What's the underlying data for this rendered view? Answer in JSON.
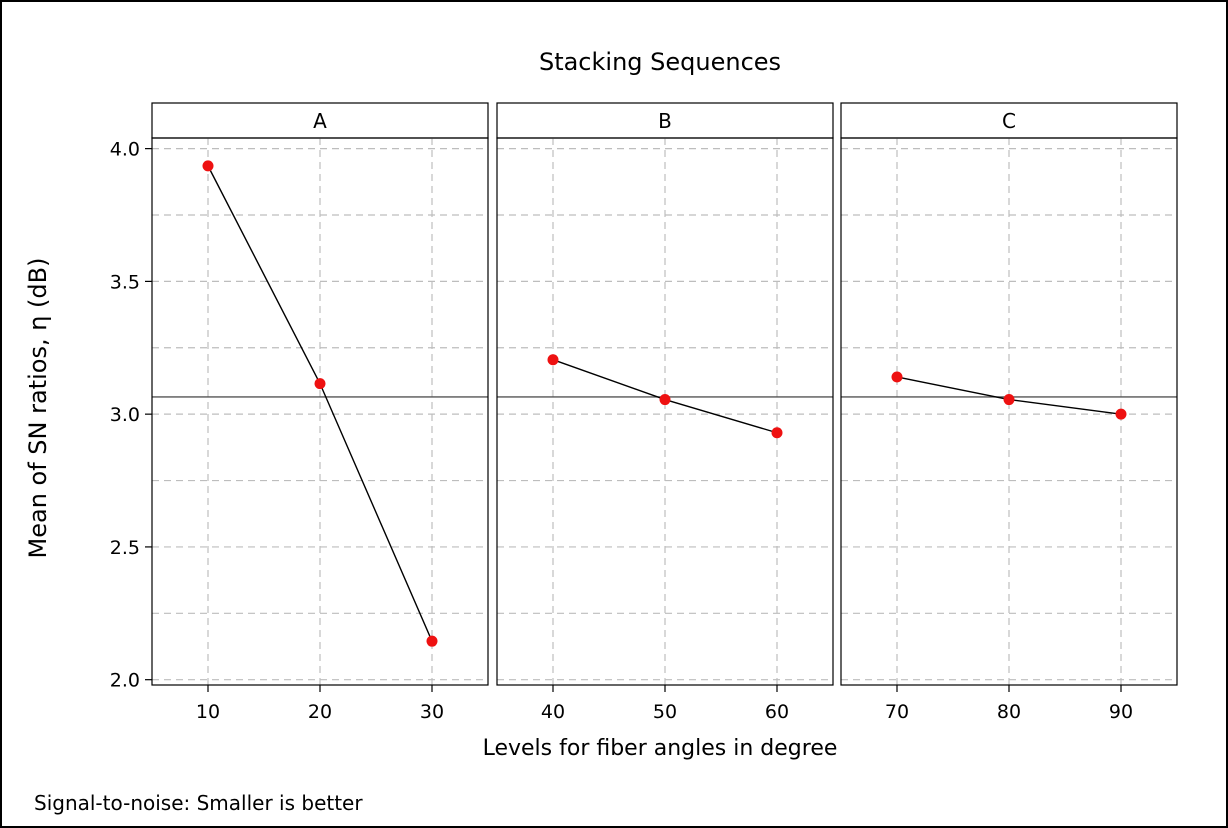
{
  "chart_data": {
    "type": "line",
    "title": "Stacking Sequences",
    "ylabel": "Mean of SN ratios, η (dB)",
    "xlabel": "Levels for fiber angles in degree",
    "footnote": "Signal-to-noise: Smaller is better",
    "ylim": [
      1.98,
      4.04
    ],
    "yticks": [
      2.0,
      2.5,
      3.0,
      3.5,
      4.0
    ],
    "ytick_labels": [
      "2.0",
      "2.5",
      "3.0",
      "3.5",
      "4.0"
    ],
    "grand_mean": 3.065,
    "grid": true,
    "point_color": "#ee1111",
    "line_color": "#000000",
    "panels": [
      {
        "name": "A",
        "x": [
          10,
          20,
          30
        ],
        "x_labels": [
          "10",
          "20",
          "30"
        ],
        "y": [
          3.935,
          3.115,
          2.145
        ]
      },
      {
        "name": "B",
        "x": [
          40,
          50,
          60
        ],
        "x_labels": [
          "40",
          "50",
          "60"
        ],
        "y": [
          3.205,
          3.055,
          2.93
        ]
      },
      {
        "name": "C",
        "x": [
          70,
          80,
          90
        ],
        "x_labels": [
          "70",
          "80",
          "90"
        ],
        "y": [
          3.14,
          3.055,
          3.0
        ]
      }
    ]
  }
}
